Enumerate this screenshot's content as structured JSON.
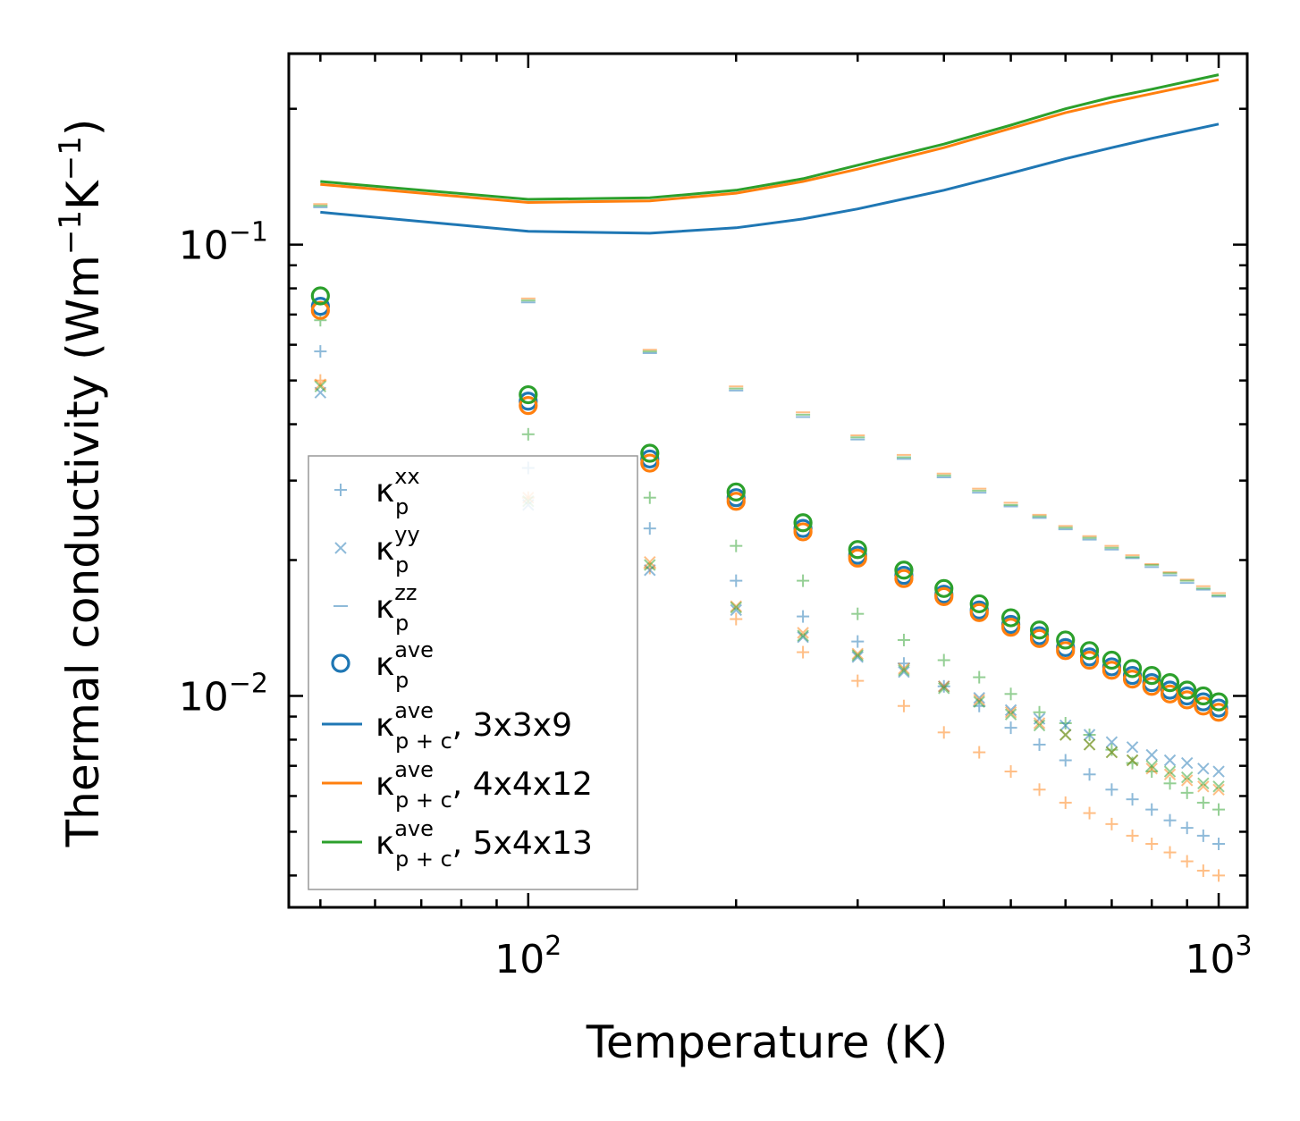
{
  "chart_data": {
    "type": "scatter",
    "xscale": "log",
    "yscale": "log",
    "xlabel": "Temperature (K)",
    "ylabel": "Thermal conductivity (Wm",
    "ylabel_unit_tail": [
      "−1",
      "K",
      "−1",
      ")"
    ],
    "xlim": [
      45,
      1100
    ],
    "ylim": [
      0.0034,
      0.265
    ],
    "x_ticks": [
      {
        "base": "10",
        "exp": "2"
      },
      {
        "base": "10",
        "exp": "3"
      }
    ],
    "y_ticks": [
      {
        "base": "10",
        "exp": "−2"
      },
      {
        "base": "10",
        "exp": "−1"
      }
    ],
    "colors": {
      "blue": "#1f77b4",
      "orange": "#ff7f0e",
      "green": "#2ca02c"
    },
    "temperatures": [
      50,
      100,
      150,
      200,
      250,
      300,
      350,
      400,
      450,
      500,
      550,
      600,
      650,
      700,
      750,
      800,
      850,
      900,
      950,
      1000
    ],
    "series": [
      {
        "name": "kp_xx",
        "marker": "plus",
        "legend": {
          "base": "κ",
          "sup": "xx",
          "sub": "p",
          "suffix": ""
        },
        "blue": [
          0.058,
          0.032,
          0.0235,
          0.018,
          0.015,
          0.0132,
          0.0118,
          0.0105,
          0.0095,
          0.0085,
          0.0078,
          0.0072,
          0.0067,
          0.0062,
          0.0059,
          0.0056,
          0.0053,
          0.0051,
          0.0049,
          0.0047
        ],
        "orange": [
          0.05,
          0.0275,
          0.0192,
          0.0148,
          0.0125,
          0.0108,
          0.0095,
          0.0083,
          0.0075,
          0.0068,
          0.0062,
          0.0058,
          0.0055,
          0.0052,
          0.0049,
          0.0047,
          0.0045,
          0.0043,
          0.0041,
          0.004
        ],
        "green": [
          0.068,
          0.038,
          0.0275,
          0.0215,
          0.018,
          0.0152,
          0.0133,
          0.012,
          0.011,
          0.0101,
          0.0092,
          0.0087,
          0.0082,
          0.0076,
          0.0071,
          0.0068,
          0.0064,
          0.0061,
          0.0058,
          0.0056
        ]
      },
      {
        "name": "kp_yy",
        "marker": "x",
        "legend": {
          "base": "κ",
          "sup": "yy",
          "sub": "p",
          "suffix": ""
        },
        "blue": [
          0.047,
          0.0265,
          0.019,
          0.0155,
          0.0135,
          0.0122,
          0.0113,
          0.0105,
          0.0099,
          0.0093,
          0.0089,
          0.0086,
          0.0082,
          0.0079,
          0.0077,
          0.0074,
          0.0072,
          0.0071,
          0.0069,
          0.0068
        ],
        "orange": [
          0.049,
          0.0275,
          0.0198,
          0.0158,
          0.0138,
          0.0124,
          0.0115,
          0.0105,
          0.0098,
          0.0092,
          0.0087,
          0.0082,
          0.0078,
          0.0075,
          0.0072,
          0.0069,
          0.0067,
          0.0065,
          0.0063,
          0.0062
        ],
        "green": [
          0.0485,
          0.027,
          0.0195,
          0.0157,
          0.0136,
          0.0123,
          0.0114,
          0.0104,
          0.0097,
          0.0091,
          0.0086,
          0.0082,
          0.0078,
          0.0075,
          0.0072,
          0.007,
          0.0068,
          0.0066,
          0.0064,
          0.0063
        ]
      },
      {
        "name": "kp_zz",
        "marker": "hline",
        "legend": {
          "base": "κ",
          "sup": "zz",
          "sub": "p",
          "suffix": ""
        },
        "blue": [
          0.121,
          0.0745,
          0.0575,
          0.0475,
          0.0415,
          0.037,
          0.0335,
          0.0305,
          0.0282,
          0.0263,
          0.0248,
          0.0234,
          0.0222,
          0.0211,
          0.0202,
          0.0193,
          0.0185,
          0.0178,
          0.0172,
          0.0166
        ],
        "orange": [
          0.123,
          0.076,
          0.0585,
          0.0485,
          0.0425,
          0.0378,
          0.0342,
          0.0311,
          0.0288,
          0.0268,
          0.0252,
          0.0238,
          0.0226,
          0.0215,
          0.0205,
          0.0196,
          0.0188,
          0.0181,
          0.0175,
          0.0169
        ],
        "green": [
          0.122,
          0.0752,
          0.058,
          0.048,
          0.042,
          0.0374,
          0.0338,
          0.0308,
          0.0285,
          0.0265,
          0.025,
          0.0236,
          0.0224,
          0.0213,
          0.0203,
          0.0195,
          0.0187,
          0.018,
          0.0173,
          0.0167
        ]
      },
      {
        "name": "kp_ave",
        "marker": "circle",
        "legend": {
          "base": "κ",
          "sup": "ave",
          "sub": "p",
          "suffix": ""
        },
        "blue": [
          0.073,
          0.045,
          0.0335,
          0.0275,
          0.0235,
          0.0205,
          0.0185,
          0.0168,
          0.0155,
          0.0144,
          0.0136,
          0.0128,
          0.0122,
          0.0116,
          0.0111,
          0.0107,
          0.0103,
          0.01,
          0.0097,
          0.0094
        ],
        "orange": [
          0.0715,
          0.044,
          0.0328,
          0.027,
          0.0231,
          0.0202,
          0.0182,
          0.0166,
          0.0153,
          0.0142,
          0.0134,
          0.0126,
          0.012,
          0.0114,
          0.0109,
          0.0105,
          0.0101,
          0.0098,
          0.0095,
          0.0092
        ],
        "green": [
          0.077,
          0.0465,
          0.0345,
          0.0283,
          0.0242,
          0.0211,
          0.019,
          0.0173,
          0.016,
          0.0149,
          0.014,
          0.0133,
          0.0126,
          0.012,
          0.0115,
          0.0111,
          0.0107,
          0.0103,
          0.01,
          0.0097
        ]
      },
      {
        "name": "kpc_ave_3x3x9",
        "marker": "line",
        "color": "blue",
        "legend": {
          "base": "κ",
          "sup": "ave",
          "sub": "p + c",
          "suffix": ", 3x3x9"
        },
        "x": [
          50,
          100,
          150,
          200,
          250,
          300,
          400,
          500,
          600,
          700,
          800,
          1000
        ],
        "values": [
          0.118,
          0.107,
          0.106,
          0.109,
          0.114,
          0.12,
          0.132,
          0.144,
          0.155,
          0.164,
          0.172,
          0.185
        ]
      },
      {
        "name": "kpc_ave_4x4x12",
        "marker": "line",
        "color": "orange",
        "legend": {
          "base": "κ",
          "sup": "ave",
          "sub": "p + c",
          "suffix": ", 4x4x12"
        },
        "x": [
          50,
          100,
          150,
          200,
          250,
          300,
          400,
          500,
          600,
          700,
          800,
          1000
        ],
        "values": [
          0.136,
          0.124,
          0.125,
          0.13,
          0.138,
          0.147,
          0.164,
          0.181,
          0.196,
          0.207,
          0.216,
          0.232
        ]
      },
      {
        "name": "kpc_ave_5x4x13",
        "marker": "line",
        "color": "green",
        "legend": {
          "base": "κ",
          "sup": "ave",
          "sub": "p + c",
          "suffix": ", 5x4x13"
        },
        "x": [
          50,
          100,
          150,
          200,
          250,
          300,
          400,
          500,
          600,
          700,
          800,
          1000
        ],
        "values": [
          0.138,
          0.126,
          0.127,
          0.132,
          0.14,
          0.15,
          0.167,
          0.184,
          0.2,
          0.212,
          0.221,
          0.238
        ]
      }
    ],
    "legend_position": "lower-left",
    "grid": false
  }
}
